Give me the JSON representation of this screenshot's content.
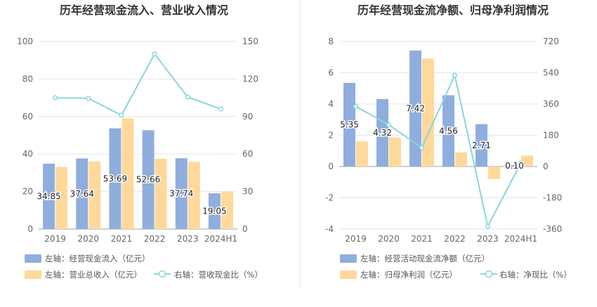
{
  "colors": {
    "blue": "#8FAEDD",
    "orange": "#FFD99A",
    "line": "#88D6DA",
    "grid": "#E3E6EE",
    "divider": "#E6E6E6"
  },
  "chart_data": [
    {
      "type": "bar",
      "title": "历年经营现金流入、营业收入情况",
      "categories": [
        "2019",
        "2020",
        "2021",
        "2022",
        "2023",
        "2024H1"
      ],
      "ylim_left": [
        0,
        100
      ],
      "ylim_right": [
        0,
        150
      ],
      "left_ticks": [
        "0",
        "20",
        "40",
        "60",
        "80",
        "100"
      ],
      "right_ticks": [
        "0",
        "30",
        "60",
        "90",
        "120",
        "150"
      ],
      "series": [
        {
          "name": "左轴：经营现金流入（亿元）",
          "axis": "left",
          "kind": "bar",
          "values": [
            34.85,
            37.64,
            53.69,
            52.66,
            37.74,
            19.05
          ]
        },
        {
          "name": "左轴：营业总收入（亿元）",
          "axis": "left",
          "kind": "bar",
          "values": [
            33.1,
            36.0,
            59.0,
            37.5,
            35.8,
            20.0
          ]
        },
        {
          "name": "右轴：营收现金比（%）",
          "axis": "right",
          "kind": "line",
          "values": [
            105,
            104.5,
            91,
            140,
            105.5,
            96
          ]
        }
      ],
      "data_labels": [
        "34.85",
        "37.64",
        "53.69",
        "52.66",
        "37.74",
        "19.05"
      ],
      "grid": true,
      "legend_position": "bottom"
    },
    {
      "type": "bar",
      "title": "历年经营现金流净额、归母净利润情况",
      "categories": [
        "2019",
        "2020",
        "2021",
        "2022",
        "2023",
        "2024H1"
      ],
      "ylim_left": [
        -4,
        8
      ],
      "ylim_right": [
        -360,
        720
      ],
      "left_ticks": [
        "-4",
        "-2",
        "0",
        "2",
        "4",
        "6",
        "8"
      ],
      "right_ticks": [
        "-360",
        "-180",
        "0",
        "180",
        "360",
        "540",
        "720"
      ],
      "series": [
        {
          "name": "左轴：经营活动现金流净额（亿元）",
          "axis": "left",
          "kind": "bar",
          "values": [
            5.35,
            4.32,
            7.42,
            4.56,
            2.71,
            0.1
          ]
        },
        {
          "name": "左轴：归母净利润（亿元）",
          "axis": "left",
          "kind": "bar",
          "values": [
            1.6,
            1.85,
            6.9,
            0.9,
            -0.8,
            0.7
          ]
        },
        {
          "name": "右轴：净现比（%）",
          "axis": "right",
          "kind": "line",
          "values": [
            346,
            240,
            108,
            525,
            -345,
            20
          ]
        }
      ],
      "data_labels": [
        "5.35",
        "4.32",
        "7.42",
        "4.56",
        "2.71",
        "0.10"
      ],
      "grid": true,
      "legend_position": "bottom"
    }
  ]
}
